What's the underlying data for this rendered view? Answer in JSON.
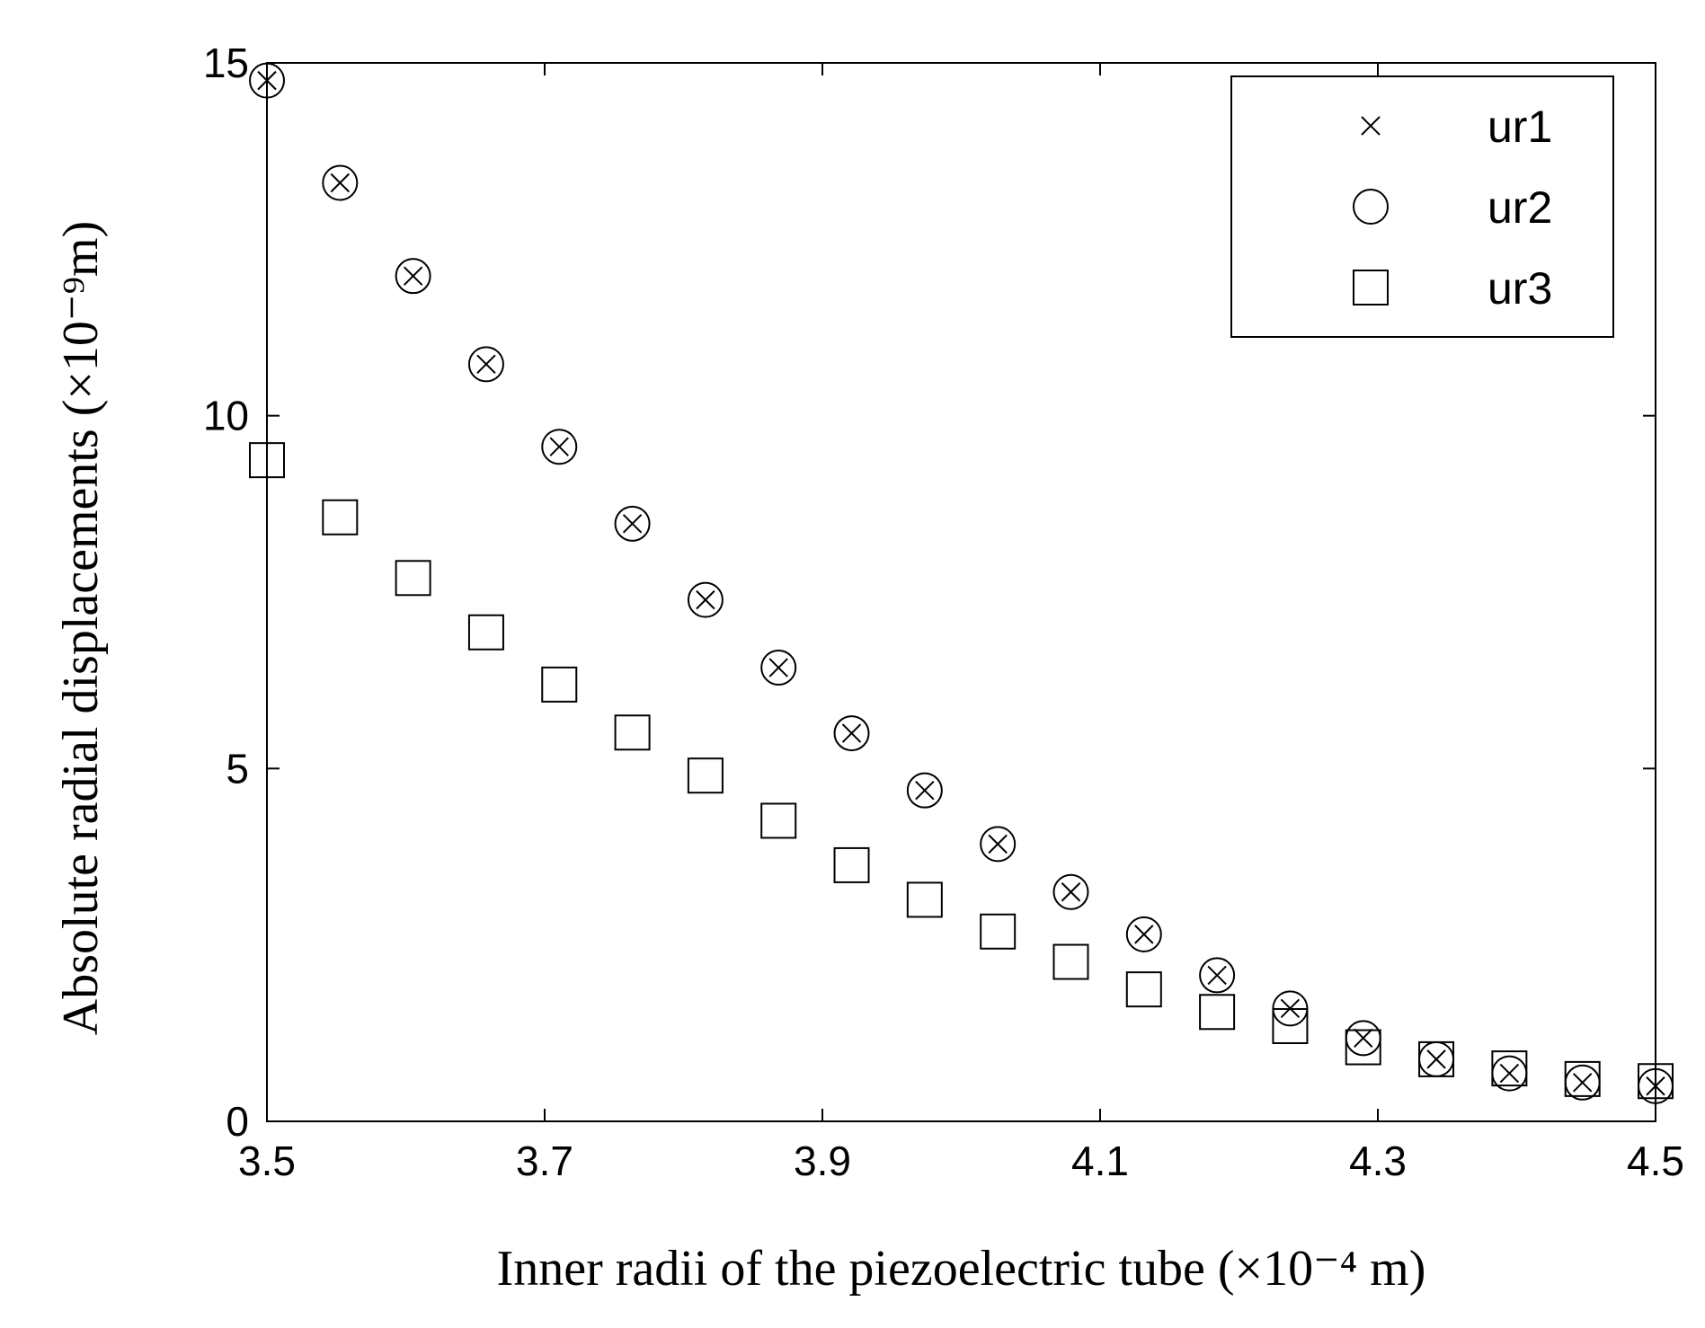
{
  "chart_data": {
    "type": "scatter",
    "title": "",
    "xlabel": "Inner radii of the piezoelectric tube (×10⁻⁴ m)",
    "ylabel": "Absolute radial displacements (×10⁻⁹m)",
    "xlim": [
      3.5,
      4.5
    ],
    "ylim": [
      0,
      15
    ],
    "xticks": [
      "3.5",
      "3.7",
      "3.9",
      "4.1",
      "4.3",
      "4.5"
    ],
    "yticks": [
      "0",
      "5",
      "10",
      "15"
    ],
    "grid": false,
    "legend_position": "top-right",
    "x": [
      3.5,
      3.55263,
      3.60526,
      3.65789,
      3.71053,
      3.76316,
      3.81579,
      3.86842,
      3.92105,
      3.97368,
      4.02632,
      4.07895,
      4.13158,
      4.18421,
      4.23684,
      4.28947,
      4.34211,
      4.39474,
      4.44737,
      4.5
    ],
    "series": [
      {
        "name": "ur1",
        "marker": "x",
        "values": [
          14.75,
          13.3,
          11.98,
          10.73,
          9.56,
          8.47,
          7.39,
          6.43,
          5.5,
          4.69,
          3.93,
          3.25,
          2.65,
          2.07,
          1.6,
          1.18,
          0.88,
          0.68,
          0.55,
          0.5
        ]
      },
      {
        "name": "ur2",
        "marker": "circle",
        "values": [
          14.75,
          13.3,
          11.98,
          10.73,
          9.56,
          8.47,
          7.39,
          6.43,
          5.5,
          4.69,
          3.93,
          3.25,
          2.65,
          2.07,
          1.6,
          1.18,
          0.88,
          0.68,
          0.55,
          0.5
        ]
      },
      {
        "name": "ur3",
        "marker": "square",
        "values": [
          9.37,
          8.56,
          7.7,
          6.93,
          6.19,
          5.51,
          4.9,
          4.26,
          3.63,
          3.14,
          2.69,
          2.26,
          1.87,
          1.55,
          1.35,
          1.05,
          0.88,
          0.75,
          0.6,
          0.57
        ]
      }
    ]
  }
}
